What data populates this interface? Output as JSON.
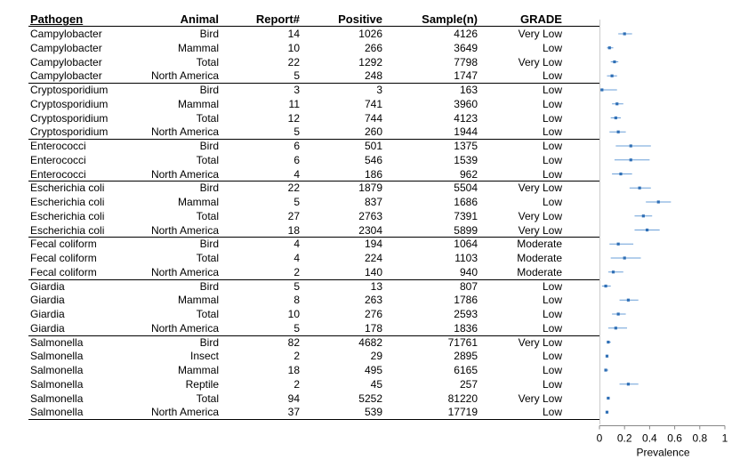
{
  "chart_data": {
    "type": "forest",
    "columns": [
      "Pathogen",
      "Animal",
      "Report#",
      "Positive",
      "Sample(n)",
      "GRADE"
    ],
    "rows": [
      {
        "pathogen": "Campylobacter",
        "animal": "Bird",
        "reports": "14",
        "positive": "1026",
        "sample": "4126",
        "grade": "Very Low",
        "est": 0.2,
        "lo": 0.15,
        "hi": 0.26
      },
      {
        "pathogen": "Campylobacter",
        "animal": "Mammal",
        "reports": "10",
        "positive": "266",
        "sample": "3649",
        "grade": "Low",
        "est": 0.08,
        "lo": 0.06,
        "hi": 0.11
      },
      {
        "pathogen": "Campylobacter",
        "animal": "Total",
        "reports": "22",
        "positive": "1292",
        "sample": "7798",
        "grade": "Very Low",
        "est": 0.12,
        "lo": 0.09,
        "hi": 0.15
      },
      {
        "pathogen": "Campylobacter",
        "animal": "North America",
        "reports": "5",
        "positive": "248",
        "sample": "1747",
        "grade": "Low",
        "est": 0.1,
        "lo": 0.06,
        "hi": 0.14
      },
      {
        "pathogen": "Cryptosporidium",
        "animal": "Bird",
        "reports": "3",
        "positive": "3",
        "sample": "163",
        "grade": "Low",
        "est": 0.02,
        "lo": 0.0,
        "hi": 0.14
      },
      {
        "pathogen": "Cryptosporidium",
        "animal": "Mammal",
        "reports": "11",
        "positive": "741",
        "sample": "3960",
        "grade": "Low",
        "est": 0.14,
        "lo": 0.1,
        "hi": 0.19
      },
      {
        "pathogen": "Cryptosporidium",
        "animal": "Total",
        "reports": "12",
        "positive": "744",
        "sample": "4123",
        "grade": "Low",
        "est": 0.13,
        "lo": 0.09,
        "hi": 0.17
      },
      {
        "pathogen": "Cryptosporidium",
        "animal": "North America",
        "reports": "5",
        "positive": "260",
        "sample": "1944",
        "grade": "Low",
        "est": 0.15,
        "lo": 0.08,
        "hi": 0.21
      },
      {
        "pathogen": "Enterococci",
        "animal": "Bird",
        "reports": "6",
        "positive": "501",
        "sample": "1375",
        "grade": "Low",
        "est": 0.25,
        "lo": 0.13,
        "hi": 0.41
      },
      {
        "pathogen": "Enterococci",
        "animal": "Total",
        "reports": "6",
        "positive": "546",
        "sample": "1539",
        "grade": "Low",
        "est": 0.25,
        "lo": 0.12,
        "hi": 0.4
      },
      {
        "pathogen": "Enterococci",
        "animal": "North America",
        "reports": "4",
        "positive": "186",
        "sample": "962",
        "grade": "Low",
        "est": 0.17,
        "lo": 0.1,
        "hi": 0.26
      },
      {
        "pathogen": "Escherichia coli",
        "animal": "Bird",
        "reports": "22",
        "positive": "1879",
        "sample": "5504",
        "grade": "Very Low",
        "est": 0.32,
        "lo": 0.24,
        "hi": 0.41
      },
      {
        "pathogen": "Escherichia coli",
        "animal": "Mammal",
        "reports": "5",
        "positive": "837",
        "sample": "1686",
        "grade": "Low",
        "est": 0.47,
        "lo": 0.37,
        "hi": 0.57
      },
      {
        "pathogen": "Escherichia coli",
        "animal": "Total",
        "reports": "27",
        "positive": "2763",
        "sample": "7391",
        "grade": "Very Low",
        "est": 0.35,
        "lo": 0.28,
        "hi": 0.42
      },
      {
        "pathogen": "Escherichia coli",
        "animal": "North America",
        "reports": "18",
        "positive": "2304",
        "sample": "5899",
        "grade": "Very Low",
        "est": 0.38,
        "lo": 0.28,
        "hi": 0.48
      },
      {
        "pathogen": "Fecal coliform",
        "animal": "Bird",
        "reports": "4",
        "positive": "194",
        "sample": "1064",
        "grade": "Moderate",
        "est": 0.15,
        "lo": 0.08,
        "hi": 0.27
      },
      {
        "pathogen": "Fecal coliform",
        "animal": "Total",
        "reports": "4",
        "positive": "224",
        "sample": "1103",
        "grade": "Moderate",
        "est": 0.2,
        "lo": 0.09,
        "hi": 0.33
      },
      {
        "pathogen": "Fecal coliform",
        "animal": "North America",
        "reports": "2",
        "positive": "140",
        "sample": "940",
        "grade": "Moderate",
        "est": 0.11,
        "lo": 0.07,
        "hi": 0.19
      },
      {
        "pathogen": "Giardia",
        "animal": "Bird",
        "reports": "5",
        "positive": "13",
        "sample": "807",
        "grade": "Low",
        "est": 0.05,
        "lo": 0.02,
        "hi": 0.09
      },
      {
        "pathogen": "Giardia",
        "animal": "Mammal",
        "reports": "8",
        "positive": "263",
        "sample": "1786",
        "grade": "Low",
        "est": 0.23,
        "lo": 0.16,
        "hi": 0.31
      },
      {
        "pathogen": "Giardia",
        "animal": "Total",
        "reports": "10",
        "positive": "276",
        "sample": "2593",
        "grade": "Low",
        "est": 0.15,
        "lo": 0.1,
        "hi": 0.21
      },
      {
        "pathogen": "Giardia",
        "animal": "North America",
        "reports": "5",
        "positive": "178",
        "sample": "1836",
        "grade": "Low",
        "est": 0.13,
        "lo": 0.07,
        "hi": 0.22
      },
      {
        "pathogen": "Salmonella",
        "animal": "Bird",
        "reports": "82",
        "positive": "4682",
        "sample": "71761",
        "grade": "Very Low",
        "est": 0.07,
        "lo": 0.06,
        "hi": 0.09
      },
      {
        "pathogen": "Salmonella",
        "animal": "Insect",
        "reports": "2",
        "positive": "29",
        "sample": "2895",
        "grade": "Low",
        "est": 0.06,
        "lo": 0.05,
        "hi": 0.07
      },
      {
        "pathogen": "Salmonella",
        "animal": "Mammal",
        "reports": "18",
        "positive": "495",
        "sample": "6165",
        "grade": "Low",
        "est": 0.05,
        "lo": 0.04,
        "hi": 0.07
      },
      {
        "pathogen": "Salmonella",
        "animal": "Reptile",
        "reports": "2",
        "positive": "45",
        "sample": "257",
        "grade": "Low",
        "est": 0.23,
        "lo": 0.16,
        "hi": 0.31
      },
      {
        "pathogen": "Salmonella",
        "animal": "Total",
        "reports": "94",
        "positive": "5252",
        "sample": "81220",
        "grade": "Very Low",
        "est": 0.07,
        "lo": 0.06,
        "hi": 0.08
      },
      {
        "pathogen": "Salmonella",
        "animal": "North America",
        "reports": "37",
        "positive": "539",
        "sample": "17719",
        "grade": "Low",
        "est": 0.06,
        "lo": 0.05,
        "hi": 0.07
      }
    ],
    "xaxis": {
      "label": "Prevalence",
      "ticks": [
        "0",
        "0.2",
        "0.4",
        "0.6",
        "0.8",
        "1"
      ],
      "range": [
        0,
        1
      ]
    },
    "grid": false,
    "colors": {
      "ci": "#6a9fd8",
      "point": "#2f6fb5",
      "rule": "#000000",
      "axis": "#888888"
    }
  }
}
